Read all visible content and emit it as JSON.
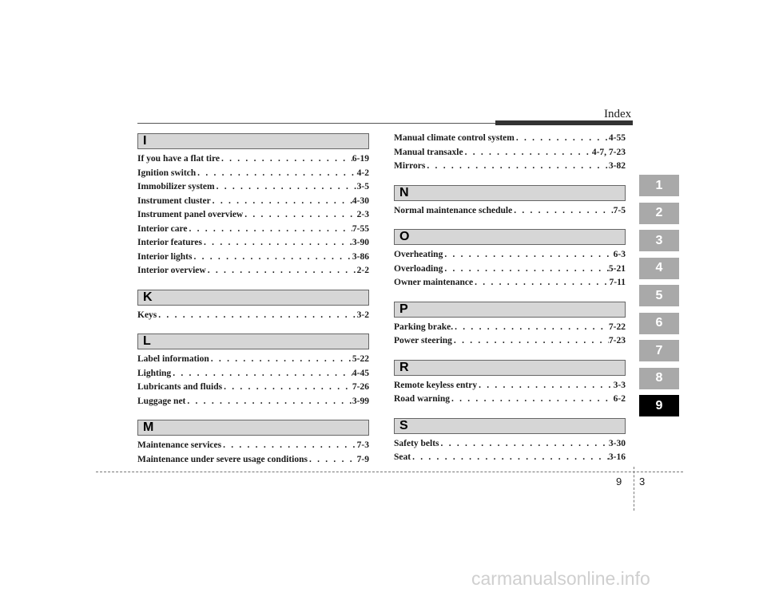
{
  "header": {
    "title": "Index"
  },
  "left_column": [
    {
      "letter": "I",
      "entries": [
        {
          "name": "If you have a flat tire",
          "page": "6-19"
        },
        {
          "name": "Ignition switch",
          "page": "4-2"
        },
        {
          "name": "Immobilizer system",
          "page": "3-5"
        },
        {
          "name": "Instrument cluster",
          "page": "4-30"
        },
        {
          "name": "Instrument panel overview",
          "page": "2-3"
        },
        {
          "name": "Interior care",
          "page": "7-55"
        },
        {
          "name": "Interior features",
          "page": "3-90"
        },
        {
          "name": "Interior lights",
          "page": "3-86"
        },
        {
          "name": "Interior overview",
          "page": "2-2"
        }
      ]
    },
    {
      "letter": "K",
      "entries": [
        {
          "name": "Keys",
          "page": "3-2"
        }
      ]
    },
    {
      "letter": "L",
      "entries": [
        {
          "name": "Label information",
          "page": "5-22"
        },
        {
          "name": "Lighting",
          "page": "4-45"
        },
        {
          "name": "Lubricants and fluids",
          "page": "7-26"
        },
        {
          "name": "Luggage net",
          "page": "3-99"
        }
      ]
    },
    {
      "letter": "M",
      "entries": [
        {
          "name": "Maintenance services",
          "page": "7-3"
        },
        {
          "name": "Maintenance under severe usage conditions",
          "page": "7-9"
        }
      ]
    }
  ],
  "right_column": {
    "continuation": [
      {
        "name": "Manual climate control system",
        "page": "4-55"
      },
      {
        "name": "Manual transaxle",
        "page": "4-7, 7-23"
      },
      {
        "name": "Mirrors",
        "page": "3-82"
      }
    ],
    "sections": [
      {
        "letter": "N",
        "entries": [
          {
            "name": "Normal maintenance schedule",
            "page": "7-5"
          }
        ]
      },
      {
        "letter": "O",
        "entries": [
          {
            "name": "Overheating",
            "page": "6-3"
          },
          {
            "name": "Overloading",
            "page": "5-21"
          },
          {
            "name": "Owner maintenance",
            "page": "7-11"
          }
        ]
      },
      {
        "letter": "P",
        "entries": [
          {
            "name": "Parking brake.",
            "page": "7-22"
          },
          {
            "name": "Power steering",
            "page": "7-23"
          }
        ]
      },
      {
        "letter": "R",
        "entries": [
          {
            "name": "Remote keyless entry",
            "page": "3-3"
          },
          {
            "name": "Road warning",
            "page": "6-2"
          }
        ]
      },
      {
        "letter": "S",
        "entries": [
          {
            "name": "Safety belts",
            "page": "3-30"
          },
          {
            "name": "Seat",
            "page": "3-16"
          }
        ]
      }
    ]
  },
  "chapter_tabs": {
    "items": [
      "1",
      "2",
      "3",
      "4",
      "5",
      "6",
      "7",
      "8",
      "9"
    ],
    "active": "9",
    "colors": {
      "inactive": "#a9a9a9",
      "active": "#000000"
    }
  },
  "footer": {
    "chapter": "9",
    "page": "3"
  },
  "watermark": "carmanualsonline.info"
}
